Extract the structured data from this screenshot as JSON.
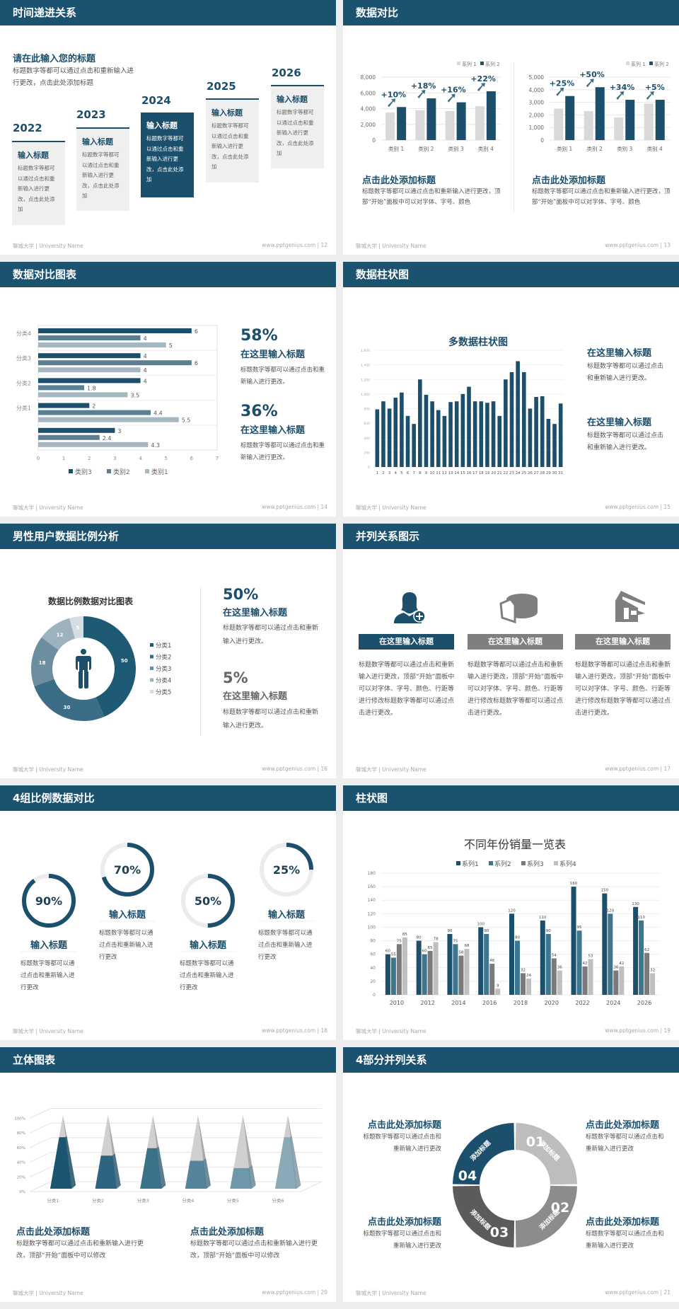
{
  "footer": {
    "left": "聊城大学 | University Name",
    "url": "www.pptgenius.com"
  },
  "colors": {
    "header": "#1b5270",
    "dark": "#1b4f6b",
    "mid": "#5a7f92",
    "light": "#a5b8c2",
    "gray": "#d9d9d9"
  },
  "s12": {
    "title": "时间递进关系",
    "page": "| 12",
    "heading": "请在此输入您的标题",
    "desc": "标题数字等都可以通过点击和重新输入进行更改，点击此处添加标题",
    "cards": [
      {
        "year": "2022",
        "title": "输入标题",
        "text": "标题数字等都可以通过点击和重新输入进行更改，点击此处添加"
      },
      {
        "year": "2023",
        "title": "输入标题",
        "text": "标题数字等都可以通过点击和重新输入进行更改，点击此处添加"
      },
      {
        "year": "2024",
        "title": "输入标题",
        "text": "标题数字等都可以通过点击和重新输入进行更改，点击此处添加"
      },
      {
        "year": "2025",
        "title": "输入标题",
        "text": "标题数字等都可以通过点击和重新输入进行更改，点击此处添加"
      },
      {
        "year": "2026",
        "title": "输入标题",
        "text": "标题数字等都可以通过点击和重新输入进行更改，点击此处添加"
      }
    ]
  },
  "s13": {
    "title": "数据对比",
    "page": "| 13",
    "blocks": [
      {
        "heading": "点击此处添加标题",
        "text": "标题数字等都可以通过点击和重新输入进行更改，顶部“开始”面板中可以对字体、字号、颜色"
      },
      {
        "heading": "点击此处添加标题",
        "text": "标题数字等都可以通过点击和重新输入进行更改，顶部“开始”面板中可以对字体、字号、颜色"
      }
    ]
  },
  "s14": {
    "title": "数据对比图表",
    "page": "| 14",
    "stats": [
      {
        "value": "58%",
        "heading": "在这里输入标题",
        "text": "标题数字等都可以通过点击和重新输入进行更改。"
      },
      {
        "value": "36%",
        "heading": "在这里输入标题",
        "text": "标题数字等都可以通过点击和重新输入进行更改。"
      }
    ]
  },
  "s15": {
    "title": "数据柱状图",
    "page": "| 15",
    "blocks": [
      {
        "heading": "在这里输入标题",
        "text": "标题数字等都可以通过点击和重新输入进行更改。"
      },
      {
        "heading": "在这里输入标题",
        "text": "标题数字等都可以通过点击和重新输入进行更改。"
      }
    ]
  },
  "s16": {
    "title": "男性用户数据比例分析",
    "page": "| 16",
    "icon": "male-person-icon",
    "stats": [
      {
        "value": "50%",
        "heading": "在这里输入标题",
        "text": "标题数字等都可以通过点击和重新输入进行更改。"
      },
      {
        "value": "5%",
        "heading": "在这里输入标题",
        "text": "标题数字等都可以通过点击和重新输入进行更改。"
      }
    ]
  },
  "s17": {
    "title": "并列关系图示",
    "page": "| 17",
    "items": [
      {
        "icon": "female-user-add-icon",
        "label": "在这里输入标题",
        "color": "#1b4f6b",
        "text": "标题数字等都可以通过点击和重新输入进行更改，顶部“开始”面板中可以对字体、字号、颜色、行距等进行修改标题数字等都可以通过点击进行更改。"
      },
      {
        "icon": "pie-chart-3d-icon",
        "label": "在这里输入标题",
        "color": "#7f7f7f",
        "text": "标题数字等都可以通过点击和重新输入进行更改，顶部“开始”面板中可以对字体、字号、颜色、行距等进行修改标题数字等都可以通过点击进行更改。"
      },
      {
        "icon": "store-building-icon",
        "label": "在这里输入标题",
        "color": "#7f7f7f",
        "text": "标题数字等都可以通过点击和重新输入进行更改，顶部“开始”面板中可以对字体、字号、颜色、行距等进行修改标题数字等都可以通过点击进行更改。"
      }
    ]
  },
  "s18": {
    "title": "4组比例数据对比",
    "page": "| 18",
    "items": [
      {
        "value": "90%",
        "heading": "输入标题",
        "text": "标题数字等都可以通过点击和重新输入进行更改"
      },
      {
        "value": "70%",
        "heading": "输入标题",
        "text": "标题数字等都可以通过点击和重新输入进行更改"
      },
      {
        "value": "50%",
        "heading": "输入标题",
        "text": "标题数字等都可以通过点击和重新输入进行更改"
      },
      {
        "value": "25%",
        "heading": "输入标题",
        "text": "标题数字等都可以通过点击和重新输入进行更改"
      }
    ]
  },
  "s19": {
    "title": "柱状图",
    "page": "| 19"
  },
  "s20": {
    "title": "立体图表",
    "page": "| 20",
    "blocks": [
      {
        "heading": "点击此处添加标题",
        "text": "标题数字等都可以通过点击和重新输入进行更改，顶部“开始”面板中可以修改"
      },
      {
        "heading": "点击此处添加标题",
        "text": "标题数字等都可以通过点击和重新输入进行更改，顶部“开始”面板中可以修改"
      }
    ]
  },
  "s21": {
    "title": "4部分并列关系",
    "page": "| 21",
    "segments": [
      {
        "number": "01",
        "label": "添加标题",
        "color": "#bdbdbd"
      },
      {
        "number": "02",
        "label": "添加标题",
        "color": "#8c8c8c"
      },
      {
        "number": "03",
        "label": "添加标题",
        "color": "#5b5b5b"
      },
      {
        "number": "04",
        "label": "添加标题",
        "color": "#1b4f6b"
      }
    ],
    "blocks": [
      {
        "heading": "点击此处添加标题",
        "text": "标题数字等都可以通过点击和重新输入进行更改"
      },
      {
        "heading": "点击此处添加标题",
        "text": "标题数字等都可以通过点击和重新输入进行更改"
      },
      {
        "heading": "点击此处添加标题",
        "text": "标题数字等都可以通过点击和重新输入进行更改"
      },
      {
        "heading": "点击此处添加标题",
        "text": "标题数字等都可以通过点击和重新输入进行更改"
      }
    ]
  },
  "chart_data": [
    {
      "id": "compare-left",
      "type": "bar",
      "categories": [
        "类别 1",
        "类别 2",
        "类别 3",
        "类别 4"
      ],
      "series": [
        {
          "name": "系列 1",
          "values": [
            3500,
            3800,
            3700,
            4300
          ],
          "color": "#d9d9d9"
        },
        {
          "name": "系列 2",
          "values": [
            4200,
            5300,
            4800,
            6200
          ],
          "color": "#1b4f6b"
        }
      ],
      "annotations": [
        "+10%",
        "+18%",
        "+16%",
        "+22%"
      ],
      "ylim": [
        0,
        8000
      ],
      "yticks": [
        {
          "v": 0,
          "label": "0"
        },
        {
          "v": 2000,
          "label": "2,000"
        },
        {
          "v": 4000,
          "label": "4,000"
        },
        {
          "v": 6000,
          "label": "6,000"
        },
        {
          "v": 8000,
          "label": "8,000"
        }
      ],
      "legend": "top-right",
      "grid": true
    },
    {
      "id": "compare-right",
      "type": "bar",
      "categories": [
        "类别 1",
        "类别 2",
        "类别 3",
        "类别 4"
      ],
      "series": [
        {
          "name": "系列 1",
          "values": [
            2500,
            2300,
            1800,
            2900
          ],
          "color": "#d9d9d9"
        },
        {
          "name": "系列 2",
          "values": [
            3500,
            4200,
            3200,
            3200
          ],
          "color": "#1b4f6b"
        }
      ],
      "annotations": [
        "+25%",
        "+50%",
        "+34%",
        "+5%"
      ],
      "ylim": [
        0,
        5000
      ],
      "yticks": [
        {
          "v": 0,
          "label": "0"
        },
        {
          "v": 1000,
          "label": "1,000"
        },
        {
          "v": 2000,
          "label": "2,000"
        },
        {
          "v": 3000,
          "label": "3,000"
        },
        {
          "v": 4000,
          "label": "4,000"
        },
        {
          "v": 5000,
          "label": "5,000"
        }
      ],
      "legend": "top-right",
      "grid": true
    },
    {
      "id": "hbar",
      "type": "bar",
      "orientation": "horizontal",
      "categories": [
        "分类4",
        "分类3",
        "分类2",
        "分类1",
        ""
      ],
      "series": [
        {
          "name": "类别3",
          "values": [
            6,
            4,
            4,
            2,
            3
          ],
          "color": "#1b4f6b"
        },
        {
          "name": "类别2",
          "values": [
            4,
            6,
            1.8,
            4.4,
            2.4
          ],
          "color": "#5a7f92"
        },
        {
          "name": "类别1",
          "values": [
            5,
            4,
            3.5,
            5.5,
            4.3
          ],
          "color": "#a5b8c2"
        }
      ],
      "xlim": [
        0,
        7
      ],
      "xticks": [
        "0",
        "1",
        "2",
        "3",
        "4",
        "5",
        "6",
        "7"
      ],
      "legend": "bottom"
    },
    {
      "id": "multi-bar",
      "type": "bar",
      "title": "多数据柱状图",
      "categories": [
        "1",
        "2",
        "3",
        "4",
        "5",
        "6",
        "7",
        "8",
        "9",
        "10",
        "11",
        "12",
        "13",
        "14",
        "15",
        "16",
        "17",
        "18",
        "19",
        "20",
        "21",
        "22",
        "23",
        "24",
        "25",
        "26",
        "27",
        "28",
        "29",
        "30",
        "31"
      ],
      "values": [
        790,
        900,
        800,
        950,
        1020,
        700,
        590,
        1200,
        990,
        900,
        780,
        700,
        890,
        900,
        1000,
        1100,
        900,
        900,
        880,
        900,
        700,
        1200,
        1300,
        1450,
        1300,
        800,
        960,
        970,
        660,
        590,
        870
      ],
      "ylim": [
        0,
        1600
      ],
      "yticks": [
        "0",
        "200",
        "400",
        "600",
        "800",
        "1,000",
        "1,200",
        "1,400",
        "1,600"
      ],
      "grid": true
    },
    {
      "id": "donut",
      "type": "pie",
      "title": "数据比例数据对比图表",
      "categories": [
        "分类1",
        "分类2",
        "分类3",
        "分类4",
        "分类5"
      ],
      "values": [
        50,
        30,
        18,
        12,
        5
      ],
      "colors": [
        "#1f5a75",
        "#3b6e86",
        "#6c8ea0",
        "#9cb2bd",
        "#d4dde2"
      ],
      "legend": "right"
    },
    {
      "id": "rings",
      "type": "pie",
      "values": [
        90,
        70,
        50,
        25
      ]
    },
    {
      "id": "grouped-bar",
      "type": "bar",
      "title": "不同年份销量一览表",
      "categories": [
        "2010",
        "2012",
        "2014",
        "2016",
        "2018",
        "2020",
        "2022",
        "2024",
        "2026"
      ],
      "series": [
        {
          "name": "系列1",
          "values": [
            60,
            80,
            90,
            100,
            120,
            110,
            160,
            150,
            130
          ],
          "color": "#1b4f6b"
        },
        {
          "name": "系列2",
          "values": [
            55,
            60,
            75,
            90,
            80,
            90,
            95,
            120,
            110
          ],
          "color": "#3e7690"
        },
        {
          "name": "系列3",
          "values": [
            75,
            65,
            58,
            46,
            32,
            54,
            42,
            36,
            62
          ],
          "color": "#7a7a7a"
        },
        {
          "name": "系列4",
          "values": [
            85,
            78,
            68,
            9,
            24,
            36,
            53,
            42,
            32
          ],
          "color": "#bfbfbf"
        }
      ],
      "ylim": [
        0,
        180
      ],
      "yticks": [
        "0",
        "20",
        "40",
        "60",
        "80",
        "100",
        "120",
        "140",
        "160",
        "180"
      ],
      "legend": "top",
      "grid": true
    },
    {
      "id": "pyramid-3d",
      "type": "bar",
      "categories": [
        "分类1",
        "分类2",
        "分类3",
        "分类4",
        "分类5",
        "分类6"
      ],
      "values": [
        70,
        45,
        55,
        38,
        28,
        70
      ],
      "ylim": [
        0,
        100
      ],
      "yticks": [
        "0%",
        "20%",
        "40%",
        "60%",
        "80%",
        "100%"
      ],
      "colors": [
        "#1b5570",
        "#2d6581",
        "#3c718a",
        "#56849a",
        "#6f97aa",
        "#8aaab8"
      ],
      "grid": true
    }
  ]
}
